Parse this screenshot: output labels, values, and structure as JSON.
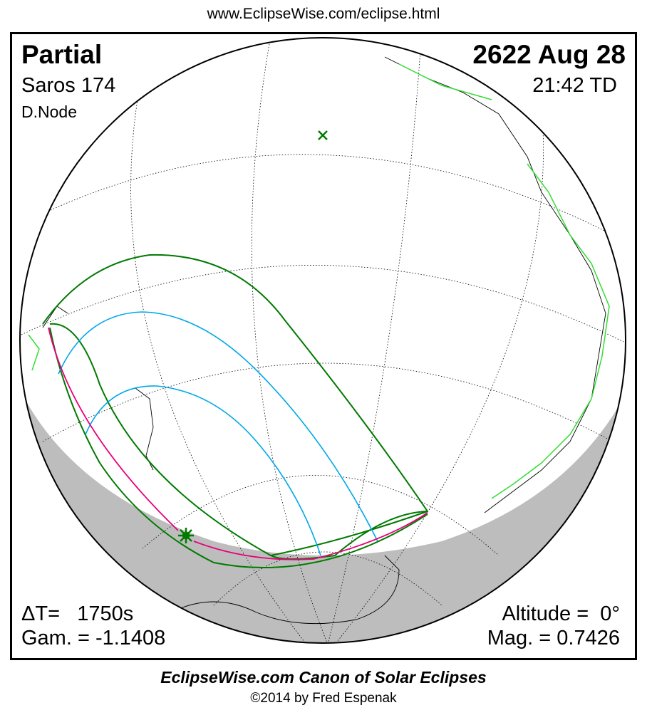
{
  "header": {
    "url": "www.EclipseWise.com/eclipse.html"
  },
  "eclipse": {
    "type": "Partial",
    "date": "2622 Aug 28",
    "saros": "Saros 174",
    "time": "21:42 TD",
    "node": "D.Node",
    "delta_t": "ΔT=   1750s",
    "gamma": "Gam. = -1.1408",
    "altitude": "Altitude =  0°",
    "magnitude": "Mag. = 0.7426"
  },
  "footer": {
    "canon": "EclipseWise.com Canon of Solar Eclipses",
    "copyright": "©2014 by Fred Espenak"
  },
  "colors": {
    "night": "#bdbdbd",
    "limits": "#007a00",
    "mag_lines": "#00a8e8",
    "rise_set": "#e8007a",
    "coast_highlight": "#33dd33"
  },
  "icons": {
    "sub_solar": "x-mark-icon",
    "greatest_eclipse": "star-icon"
  }
}
